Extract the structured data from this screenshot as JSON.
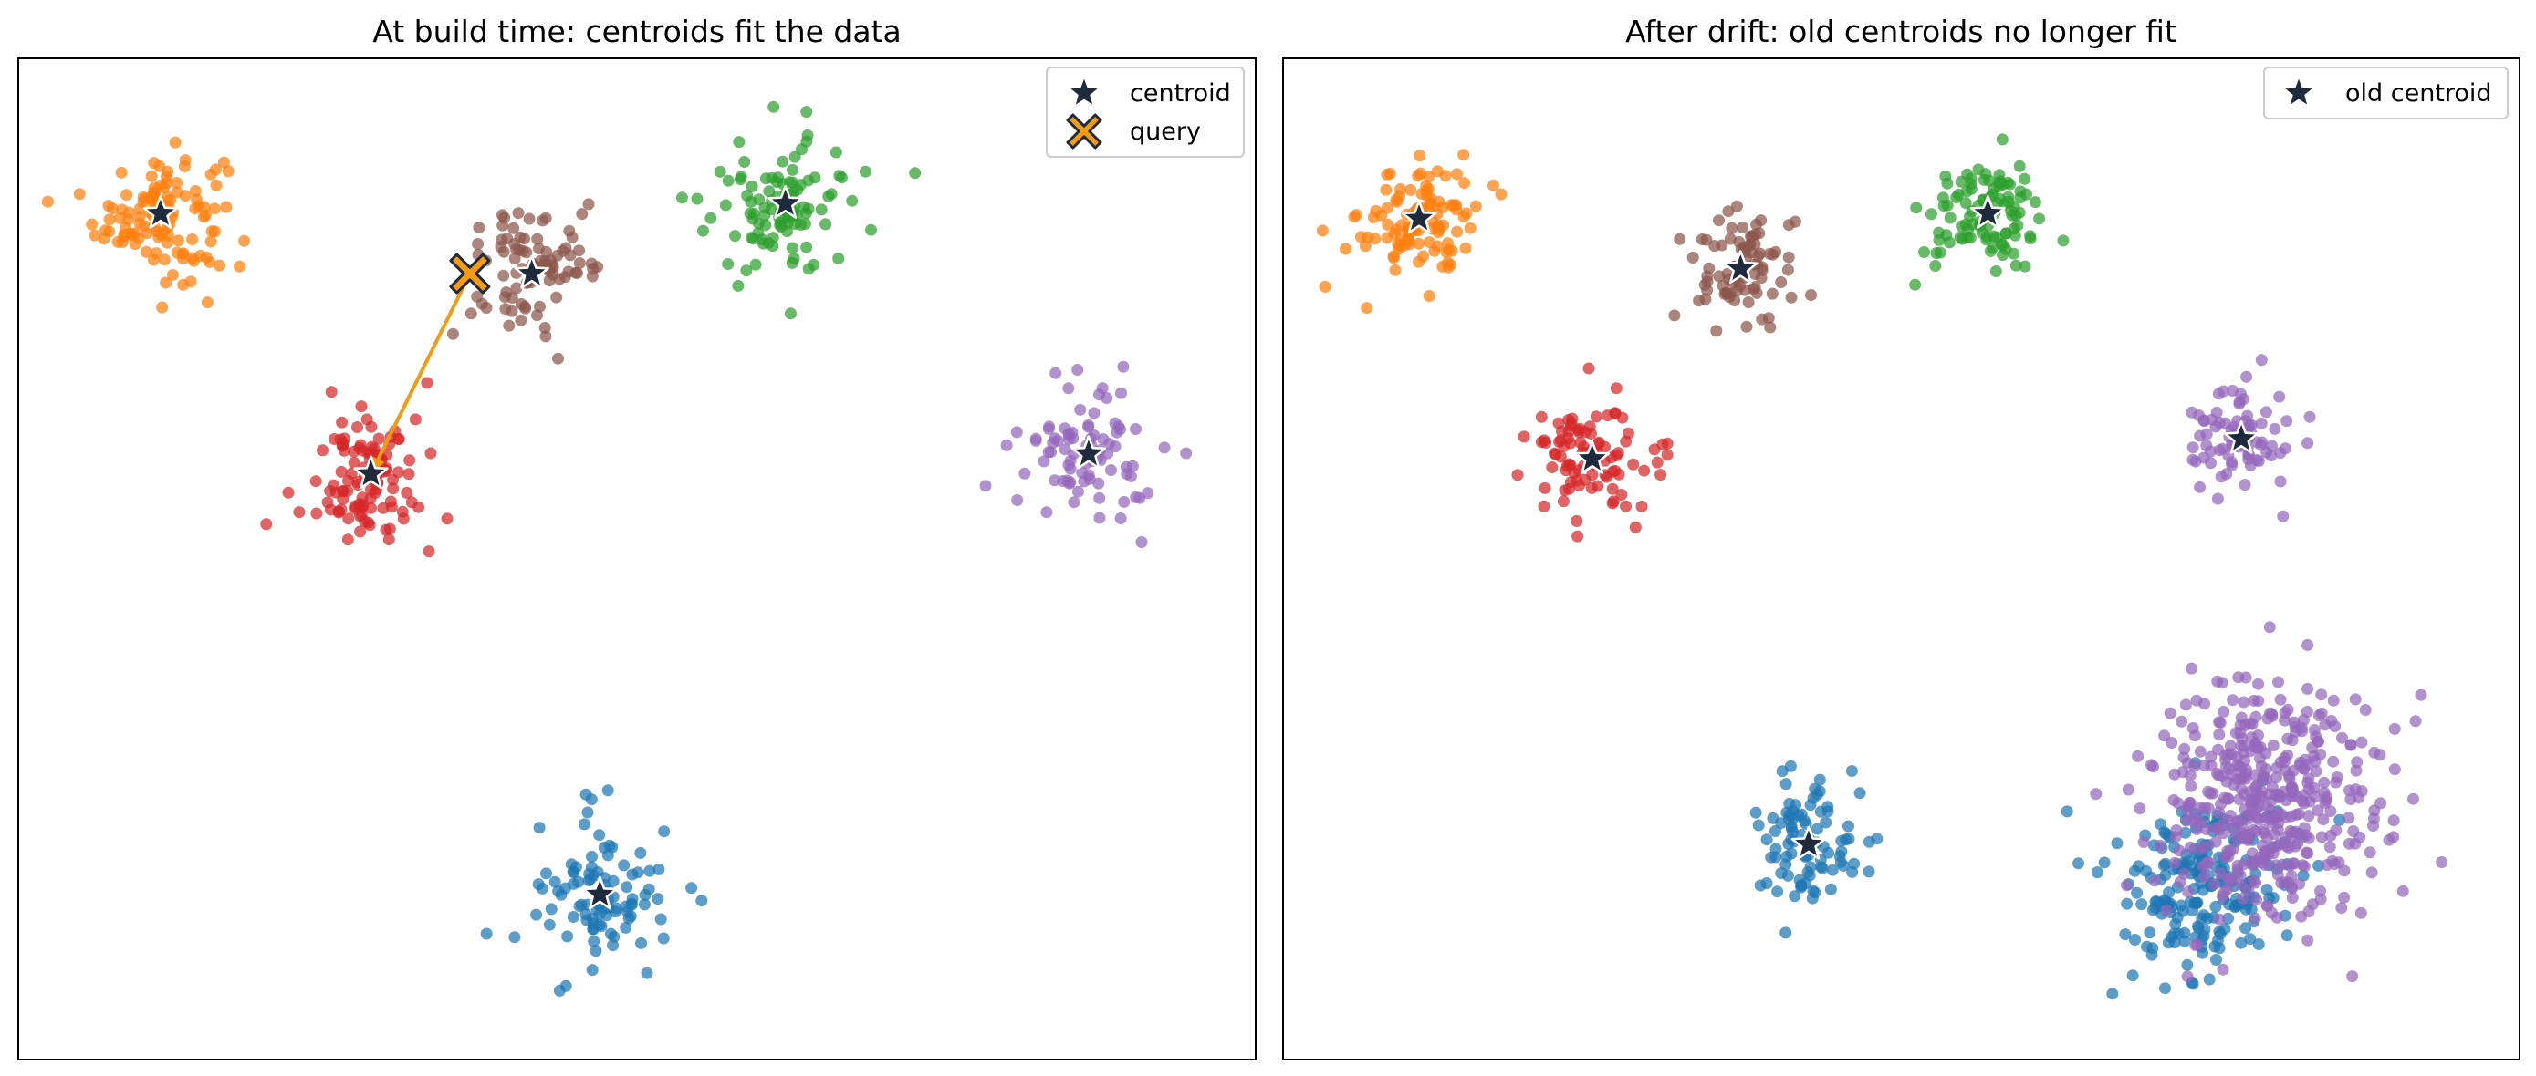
{
  "colors": {
    "blue": "#1f77b4",
    "orange": "#ff7f0e",
    "green": "#2ca02c",
    "red": "#d62728",
    "purple": "#9467bd",
    "brown": "#8c564b",
    "centroid": "#1f2a3c",
    "query": "#f39c12",
    "arrow": "#f39c12"
  },
  "chart_data": [
    {
      "type": "scatter",
      "title": "At build time: centroids fit the data",
      "xlim": [
        0,
        100
      ],
      "ylim": [
        0,
        100
      ],
      "grid": false,
      "legend": {
        "placement": "top-right",
        "entries": [
          {
            "label": "centroid",
            "marker": "star"
          },
          {
            "label": "query",
            "marker": "x"
          }
        ]
      },
      "clusters": [
        {
          "color": "orange",
          "center": [
            11.5,
            84.5
          ],
          "spread": 4.2,
          "n": 120
        },
        {
          "color": "brown",
          "center": [
            41.5,
            78.5
          ],
          "spread": 4.0,
          "n": 90
        },
        {
          "color": "green",
          "center": [
            62.0,
            85.5
          ],
          "spread": 4.6,
          "n": 100
        },
        {
          "color": "red",
          "center": [
            28.5,
            58.5
          ],
          "spread": 4.2,
          "n": 110
        },
        {
          "color": "purple",
          "center": [
            86.5,
            60.5
          ],
          "spread": 4.6,
          "n": 85
        },
        {
          "color": "blue",
          "center": [
            47.0,
            16.5
          ],
          "spread": 4.2,
          "n": 100
        }
      ],
      "centroids": [
        [
          11.5,
          84.5
        ],
        [
          41.5,
          78.5
        ],
        [
          62.0,
          85.5
        ],
        [
          28.5,
          58.5
        ],
        [
          86.5,
          60.5
        ],
        [
          47.0,
          16.5
        ]
      ],
      "query": [
        36.5,
        78.5
      ],
      "arrow": {
        "from": [
          36.5,
          78.5
        ],
        "to": [
          28.5,
          58.5
        ]
      }
    },
    {
      "type": "scatter",
      "title": "After drift: old centroids no longer fit",
      "xlim": [
        0,
        100
      ],
      "ylim": [
        0,
        100
      ],
      "grid": false,
      "legend": {
        "placement": "top-right",
        "entries": [
          {
            "label": "old centroid",
            "marker": "star"
          }
        ]
      },
      "clusters": [
        {
          "color": "orange",
          "center": [
            11.0,
            84.0
          ],
          "spread": 3.8,
          "n": 110
        },
        {
          "color": "brown",
          "center": [
            37.0,
            79.0
          ],
          "spread": 3.6,
          "n": 85
        },
        {
          "color": "green",
          "center": [
            57.0,
            84.5
          ],
          "spread": 3.8,
          "n": 100
        },
        {
          "color": "red",
          "center": [
            25.0,
            60.0
          ],
          "spread": 3.8,
          "n": 95
        },
        {
          "color": "purple",
          "center": [
            77.5,
            62.0
          ],
          "spread": 3.4,
          "n": 80
        },
        {
          "color": "blue",
          "center": [
            42.5,
            21.5
          ],
          "spread": 3.8,
          "n": 90
        },
        {
          "color": "blue",
          "center": [
            74.5,
            17.5
          ],
          "spread": 5.6,
          "n": 210
        },
        {
          "color": "purple",
          "center": [
            79.5,
            25.5
          ],
          "spread": 7.5,
          "n": 430
        }
      ],
      "centroids": [
        [
          11.0,
          84.0
        ],
        [
          37.0,
          79.0
        ],
        [
          57.0,
          84.5
        ],
        [
          25.0,
          60.0
        ],
        [
          77.5,
          62.0
        ],
        [
          42.5,
          21.5
        ]
      ]
    }
  ]
}
